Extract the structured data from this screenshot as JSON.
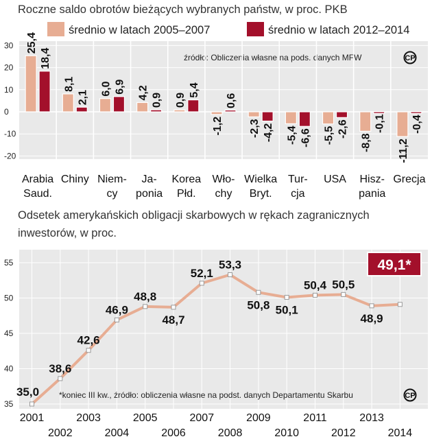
{
  "colors": {
    "series_2005_2007": "#e7ad93",
    "series_2012_2014": "#a3102b",
    "panel_bg": "#e9e9e9",
    "grid": "#ffffff",
    "line": "#e7ad93",
    "highlight_bg": "#a3102b"
  },
  "copyright_symbol": "CP",
  "chart_data": [
    {
      "type": "bar",
      "title": "Roczne saldo obrotów bieżących wybranych państw, w proc. PKB",
      "source": "źródło: Obliczenia własne na pods. danych MFW",
      "categories": [
        "Arabia Saud.",
        "Chiny",
        "Niemcy",
        "Japonia",
        "Korea Płd.",
        "Włochy",
        "Wielka Bryt.",
        "Turcja",
        "USA",
        "Hiszpania",
        "Grecja"
      ],
      "category_lines": [
        [
          "Arabia",
          "Saud."
        ],
        [
          "Chiny",
          ""
        ],
        [
          "Niem-",
          "cy"
        ],
        [
          "Ja-",
          "ponia"
        ],
        [
          "Korea",
          "Płd."
        ],
        [
          "Wło-",
          "chy"
        ],
        [
          "Wielka",
          "Bryt."
        ],
        [
          "Tur-",
          "cja"
        ],
        [
          "USA",
          ""
        ],
        [
          "Hisz-",
          "pania"
        ],
        [
          "Grecja",
          ""
        ]
      ],
      "series": [
        {
          "name": "średnio w latach 2005–2007",
          "values": [
            25.4,
            8.1,
            6.0,
            4.2,
            0.9,
            -1.2,
            -2.3,
            -5.4,
            -5.5,
            -8.8,
            -11.2
          ]
        },
        {
          "name": "średnio w latach 2012–2014",
          "values": [
            18.4,
            2.1,
            6.9,
            0.9,
            5.4,
            0.6,
            -4.2,
            -6.6,
            -2.6,
            -0.1,
            -0.4
          ]
        }
      ],
      "value_labels": [
        [
          "25,4",
          "18,4"
        ],
        [
          "8,1",
          "2,1"
        ],
        [
          "6,0",
          "6,9"
        ],
        [
          "4,2",
          "0,9"
        ],
        [
          "0,9",
          "5,4"
        ],
        [
          "-1,2",
          "0,6"
        ],
        [
          "-2,3",
          "-4,2"
        ],
        [
          "-5,4",
          "-6,6"
        ],
        [
          "-5,5",
          "-2,6"
        ],
        [
          "-8,8",
          "-0,1"
        ],
        [
          "-11,2",
          "-0,4"
        ]
      ],
      "yticks": [
        "30",
        "20",
        "10",
        "0",
        "-10",
        "-20"
      ],
      "ytick_values": [
        30,
        20,
        10,
        0,
        -10,
        -20
      ],
      "ylim": [
        -20,
        30
      ],
      "legend": "top"
    },
    {
      "type": "line",
      "title_lines": [
        "Odsetek amerykańskich obligacji skarbowych w rękach zagranicznych",
        "inwestorów, w proc."
      ],
      "note": "*koniec III kw., źródło: obliczenia własne na podst. danych Departamentu Skarbu",
      "x": [
        2001,
        2002,
        2003,
        2004,
        2005,
        2006,
        2007,
        2008,
        2009,
        2010,
        2011,
        2012,
        2013,
        2014
      ],
      "values": [
        35.0,
        38.6,
        42.6,
        46.9,
        48.8,
        48.7,
        52.1,
        53.3,
        50.8,
        50.1,
        50.4,
        50.5,
        48.9,
        49.1
      ],
      "value_labels": [
        "35,0",
        "38,6",
        "42,6",
        "46,9",
        "48,8",
        "48,7",
        "52,1",
        "53,3",
        "50,8",
        "50,1",
        "50,4",
        "50,5",
        "48,9",
        "49,1*"
      ],
      "x_labels": [
        "2001",
        "2002",
        "2003",
        "2004",
        "2005",
        "2006",
        "2007",
        "2008",
        "2009",
        "2010",
        "2011",
        "2012",
        "2013",
        "2014"
      ],
      "yticks": [
        "55",
        "50",
        "45",
        "40",
        "35"
      ],
      "ytick_values": [
        55,
        50,
        45,
        40,
        35
      ],
      "ylim": [
        35,
        55
      ],
      "highlight_index": 13
    }
  ]
}
